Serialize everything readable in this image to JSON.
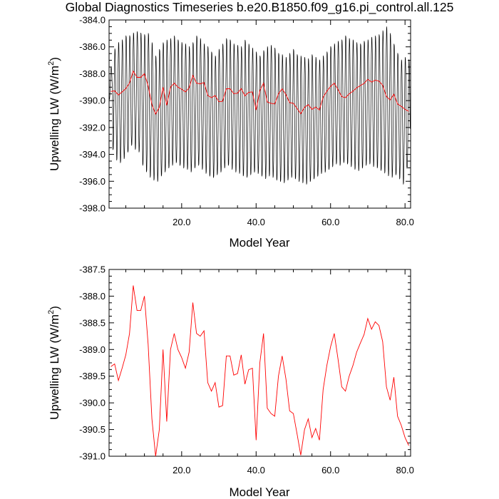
{
  "title": "Global Diagnostics Timeseries b.e20.B1850.f09_g16.pi_control.all.125",
  "colors": {
    "monthly": "#000000",
    "annual": "#ff0000",
    "axis": "#000000",
    "background": "#ffffff"
  },
  "chart_data": [
    {
      "type": "line",
      "xlabel": "Model Year",
      "ylabel_main": "Upwelling LW (W/m",
      "ylabel_sup": "2",
      "ylabel_close": ")",
      "xlim": [
        0.5,
        81.5
      ],
      "ylim": [
        -398.0,
        -384.0
      ],
      "xtick_values": [
        20,
        40,
        60,
        80
      ],
      "xtick_labels": [
        "20.0",
        "40.0",
        "60.0",
        "80.0"
      ],
      "ytick_values": [
        -384,
        -386,
        -388,
        -390,
        -392,
        -394,
        -396,
        -398
      ],
      "ytick_labels": [
        "-384.0",
        "-386.0",
        "-388.0",
        "-390.0",
        "-392.0",
        "-394.0",
        "-396.0",
        "-398.0"
      ],
      "series": [
        {
          "style": "monthly",
          "max_by_year": [
            -387.5,
            -386.0,
            -385.5,
            -385.3,
            -385.0,
            -385.0,
            -384.8,
            -384.7,
            -384.8,
            -384.9,
            -384.8,
            -385.5,
            -386.5,
            -386.0,
            -385.5,
            -385.3,
            -385.2,
            -385.0,
            -385.3,
            -385.5,
            -385.6,
            -385.8,
            -385.5,
            -385.0,
            -385.2,
            -385.6,
            -385.8,
            -386.2,
            -386.5,
            -386.0,
            -385.6,
            -385.2,
            -385.3,
            -385.6,
            -385.7,
            -385.8,
            -385.3,
            -385.6,
            -385.9,
            -386.2,
            -386.5,
            -386.1,
            -385.8,
            -385.7,
            -385.9,
            -386.3,
            -386.4,
            -386.6,
            -386.3,
            -386.0,
            -386.4,
            -386.5,
            -386.6,
            -386.7,
            -386.4,
            -386.6,
            -386.8,
            -386.5,
            -386.2,
            -385.8,
            -385.6,
            -385.4,
            -385.3,
            -385.0,
            -385.2,
            -385.3,
            -385.5,
            -385.6,
            -385.4,
            -385.3,
            -385.1,
            -385.0,
            -384.9,
            -384.6,
            -384.3,
            -384.8,
            -385.6,
            -386.3,
            -386.8,
            -386.6,
            -386.8
          ],
          "min_by_year": [
            -390.0,
            -393.8,
            -394.6,
            -394.8,
            -394.5,
            -394.0,
            -393.5,
            -393.8,
            -394.0,
            -395.0,
            -395.5,
            -395.9,
            -396.1,
            -396.2,
            -395.8,
            -395.5,
            -395.2,
            -395.0,
            -394.8,
            -395.0,
            -395.2,
            -395.3,
            -395.5,
            -395.2,
            -395.0,
            -395.3,
            -395.6,
            -395.8,
            -395.9,
            -395.7,
            -395.5,
            -395.2,
            -395.0,
            -395.3,
            -395.5,
            -395.6,
            -395.8,
            -395.9,
            -395.7,
            -395.5,
            -395.6,
            -395.8,
            -396.0,
            -395.8,
            -395.9,
            -396.1,
            -396.2,
            -396.3,
            -396.1,
            -395.9,
            -396.0,
            -396.2,
            -396.3,
            -396.4,
            -396.2,
            -396.0,
            -395.8,
            -395.6,
            -395.5,
            -395.3,
            -395.1,
            -394.9,
            -395.0,
            -394.8,
            -394.9,
            -395.1,
            -395.3,
            -395.4,
            -395.2,
            -395.0,
            -394.9,
            -395.1,
            -395.2,
            -395.4,
            -395.6,
            -395.8,
            -395.9,
            -395.7,
            -396.0,
            -396.4,
            -395.2
          ],
          "note": "12 samples per model year; first year and last year partial"
        },
        {
          "style": "annual",
          "x": [
            1,
            2,
            3,
            4,
            5,
            6,
            7,
            8,
            9,
            10,
            11,
            12,
            13,
            14,
            15,
            16,
            17,
            18,
            19,
            20,
            21,
            22,
            23,
            24,
            25,
            26,
            27,
            28,
            29,
            30,
            31,
            32,
            33,
            34,
            35,
            36,
            37,
            38,
            39,
            40,
            41,
            42,
            43,
            44,
            45,
            46,
            47,
            48,
            49,
            50,
            51,
            52,
            53,
            54,
            55,
            56,
            57,
            58,
            59,
            60,
            61,
            62,
            63,
            64,
            65,
            66,
            67,
            68,
            69,
            70,
            71,
            72,
            73,
            74,
            75,
            76,
            77,
            78,
            79,
            80,
            81
          ],
          "values": [
            -389.32,
            -389.27,
            -389.58,
            -389.35,
            -389.1,
            -388.7,
            -387.8,
            -388.27,
            -388.27,
            -388.0,
            -388.9,
            -390.3,
            -391.0,
            -390.5,
            -389.0,
            -390.35,
            -389.0,
            -388.7,
            -389.0,
            -389.15,
            -389.35,
            -389.05,
            -388.12,
            -388.7,
            -388.75,
            -388.65,
            -389.62,
            -389.78,
            -389.62,
            -390.08,
            -390.05,
            -389.12,
            -389.12,
            -389.48,
            -389.45,
            -389.1,
            -389.65,
            -389.38,
            -389.35,
            -390.7,
            -389.25,
            -388.7,
            -390.1,
            -390.2,
            -390.25,
            -389.5,
            -389.12,
            -389.55,
            -390.15,
            -390.2,
            -390.58,
            -390.98,
            -390.5,
            -390.3,
            -390.65,
            -390.48,
            -390.7,
            -389.75,
            -389.3,
            -388.95,
            -388.7,
            -389.18,
            -389.7,
            -389.78,
            -389.5,
            -389.3,
            -389.05,
            -388.88,
            -388.72,
            -388.42,
            -388.62,
            -388.48,
            -388.55,
            -388.85,
            -389.7,
            -389.95,
            -389.52,
            -390.25,
            -390.42,
            -390.65,
            -390.8
          ]
        }
      ]
    },
    {
      "type": "line",
      "xlabel": "Model Year",
      "ylabel_main": "Upwelling LW (W/m",
      "ylabel_sup": "2",
      "ylabel_close": ")",
      "xlim": [
        0.5,
        81.5
      ],
      "ylim": [
        -391.0,
        -387.5
      ],
      "xtick_values": [
        20,
        40,
        60,
        80
      ],
      "xtick_labels": [
        "20.0",
        "40.0",
        "60.0",
        "80.0"
      ],
      "ytick_values": [
        -387.5,
        -388.0,
        -388.5,
        -389.0,
        -389.5,
        -390.0,
        -390.5,
        -391.0
      ],
      "ytick_labels": [
        "-387.5",
        "-388.0",
        "-388.5",
        "-389.0",
        "-389.5",
        "-390.0",
        "-390.5",
        "-391.0"
      ],
      "series": [
        {
          "style": "annual",
          "ref": "same annual values as top panel"
        }
      ]
    }
  ]
}
